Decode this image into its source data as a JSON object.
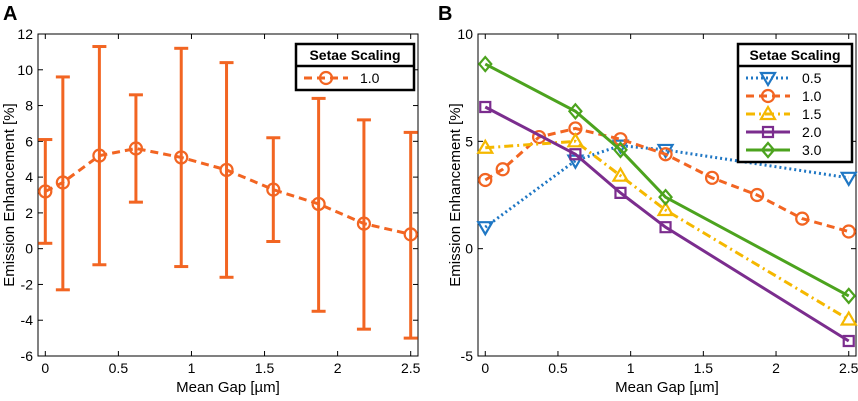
{
  "chart_data": [
    {
      "panel": "A",
      "type": "line",
      "title": "",
      "xlabel": "Mean Gap [µm]",
      "ylabel": "Emission  Enhancement [%]",
      "xlim": [
        -0.05,
        2.55
      ],
      "ylim": [
        -6,
        12
      ],
      "xticks": [
        0,
        0.5,
        1,
        1.5,
        2,
        2.5
      ],
      "xtick_labels": [
        "0",
        "0.5",
        "1",
        "1.5",
        "2",
        "2.5"
      ],
      "yticks": [
        -6,
        -4,
        -2,
        0,
        2,
        4,
        6,
        8,
        10,
        12
      ],
      "ytick_labels": [
        "-6",
        "-4",
        "-2",
        "0",
        "2",
        "4",
        "6",
        "8",
        "10",
        "12"
      ],
      "grid": false,
      "legend": {
        "title": "Setae Scaling",
        "position": "top-right"
      },
      "series": [
        {
          "name": "1.0",
          "color": "#f26522",
          "line_style": "dashed",
          "marker": "circle",
          "x": [
            0,
            0.12,
            0.37,
            0.62,
            0.93,
            1.24,
            1.56,
            1.87,
            2.18,
            2.5
          ],
          "y": [
            3.2,
            3.7,
            5.2,
            5.6,
            5.1,
            4.4,
            3.3,
            2.5,
            1.4,
            0.8
          ],
          "err_low": [
            0.3,
            -2.3,
            -0.9,
            2.6,
            -1.0,
            -1.6,
            0.4,
            -3.5,
            -4.5,
            -5.0
          ],
          "err_high": [
            6.1,
            9.6,
            11.3,
            8.6,
            11.2,
            10.4,
            6.2,
            8.4,
            7.2,
            6.5
          ]
        }
      ]
    },
    {
      "panel": "B",
      "type": "line",
      "title": "",
      "xlabel": "Mean Gap [µm]",
      "ylabel": "Emission  Enhancement [%]",
      "xlim": [
        -0.05,
        2.55
      ],
      "ylim": [
        -5,
        10
      ],
      "xticks": [
        0,
        0.5,
        1,
        1.5,
        2,
        2.5
      ],
      "xtick_labels": [
        "0",
        "0.5",
        "1",
        "1.5",
        "2",
        "2.5"
      ],
      "yticks": [
        -5,
        0,
        5,
        10
      ],
      "ytick_labels": [
        "-5",
        "0",
        "5",
        "10"
      ],
      "grid": false,
      "legend": {
        "title": "Setae Scaling",
        "position": "top-right"
      },
      "series": [
        {
          "name": "0.5",
          "color": "#1f77c4",
          "line_style": "dotted",
          "marker": "triangle-down",
          "x": [
            0,
            0.62,
            0.93,
            1.24,
            2.5
          ],
          "y": [
            1.0,
            4.1,
            4.8,
            4.6,
            3.3
          ]
        },
        {
          "name": "1.0",
          "color": "#f26522",
          "line_style": "dashed",
          "marker": "circle",
          "x": [
            0,
            0.12,
            0.37,
            0.62,
            0.93,
            1.24,
            1.56,
            1.87,
            2.18,
            2.5
          ],
          "y": [
            3.2,
            3.7,
            5.2,
            5.6,
            5.1,
            4.4,
            3.3,
            2.5,
            1.4,
            0.8
          ]
        },
        {
          "name": "1.5",
          "color": "#f5b800",
          "line_style": "dashdot",
          "marker": "triangle-up",
          "x": [
            0,
            0.62,
            0.93,
            1.24,
            2.5
          ],
          "y": [
            4.7,
            5.0,
            3.4,
            1.8,
            -3.3
          ]
        },
        {
          "name": "2.0",
          "color": "#7b2d8e",
          "line_style": "solid",
          "marker": "square",
          "x": [
            0,
            0.62,
            0.93,
            1.24,
            2.5
          ],
          "y": [
            6.6,
            4.4,
            2.6,
            1.0,
            -4.3
          ]
        },
        {
          "name": "3.0",
          "color": "#4ca31e",
          "line_style": "solid",
          "marker": "diamond",
          "x": [
            0,
            0.62,
            0.93,
            1.24,
            2.5
          ],
          "y": [
            8.6,
            6.4,
            4.6,
            2.4,
            -2.2
          ]
        }
      ]
    }
  ]
}
